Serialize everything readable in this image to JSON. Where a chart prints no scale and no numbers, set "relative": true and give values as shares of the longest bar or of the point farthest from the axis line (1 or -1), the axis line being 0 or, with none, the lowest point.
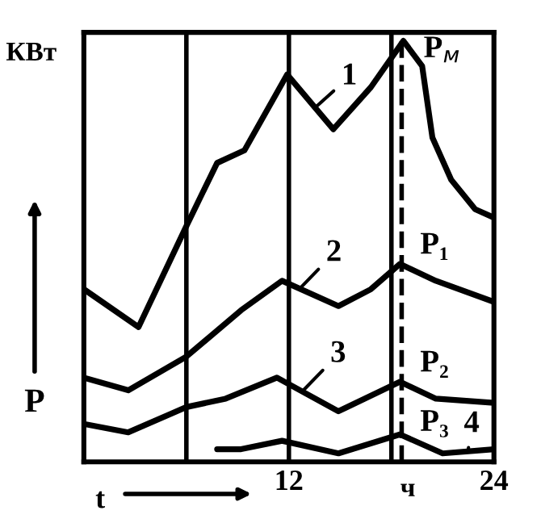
{
  "chart_data": {
    "type": "line",
    "relative": true,
    "xlabel": "t",
    "ylabel": "P",
    "xlim": [
      0,
      24
    ],
    "xticks": [
      12,
      24
    ],
    "grid": false,
    "legend": false,
    "marker": "none",
    "line_style": "solid",
    "series": [
      {
        "color": "#000000",
        "x": [
          0,
          3.2,
          6,
          7.8,
          9.4,
          11.9,
          14.6,
          16.8,
          18.7,
          19.8,
          20.4,
          21.5,
          22.9,
          24
        ],
        "values": [
          0.41,
          0.32,
          0.56,
          0.71,
          0.74,
          0.92,
          0.79,
          0.89,
          1.0,
          0.94,
          0.77,
          0.67,
          0.6,
          0.58
        ]
      },
      {
        "color": "#000000",
        "x": [
          0,
          2.6,
          6,
          9.2,
          11.6,
          14.9,
          16.8,
          18.5,
          20.6,
          24
        ],
        "values": [
          0.2,
          0.17,
          0.25,
          0.36,
          0.43,
          0.37,
          0.41,
          0.47,
          0.43,
          0.38
        ]
      },
      {
        "color": "#000000",
        "x": [
          0,
          2.6,
          6,
          8.3,
          11.3,
          14.9,
          18.5,
          20.6,
          24
        ],
        "values": [
          0.09,
          0.07,
          0.13,
          0.15,
          0.2,
          0.12,
          0.19,
          0.15,
          0.14
        ]
      },
      {
        "color": "#000000",
        "x": [
          7.8,
          9.2,
          11.6,
          14.9,
          18.5,
          21,
          24
        ],
        "values": [
          0.03,
          0.03,
          0.05,
          0.02,
          0.065,
          0.02,
          0.03
        ]
      }
    ],
    "ref_lines": [
      {
        "axis": "x",
        "value": 6,
        "color": "#000000"
      },
      {
        "axis": "x",
        "value": 12,
        "color": "#000000"
      },
      {
        "axis": "x",
        "value": 18,
        "color": "#000000"
      },
      {
        "axis": "x",
        "value": 18.6,
        "color": "#000000",
        "line_style": "dashed"
      }
    ],
    "annotations": [
      "КВт",
      "ч",
      {
        "text": "1",
        "x": 13.5,
        "y": 0.84
      },
      {
        "text": "2",
        "x": 12.6,
        "y": 0.41
      },
      {
        "text": "3",
        "x": 12.85,
        "y": 0.17
      },
      {
        "text": "4",
        "x": 22.5,
        "y": 0.03
      },
      {
        "text": "P$_{м}$",
        "x": 18.7,
        "y": 1.0
      },
      {
        "text": "P₁",
        "x": 18.5,
        "y": 0.47
      },
      {
        "text": "P₂",
        "x": 18.5,
        "y": 0.19
      },
      {
        "text": "P₃",
        "x": 18.5,
        "y": 0.065
      }
    ]
  }
}
